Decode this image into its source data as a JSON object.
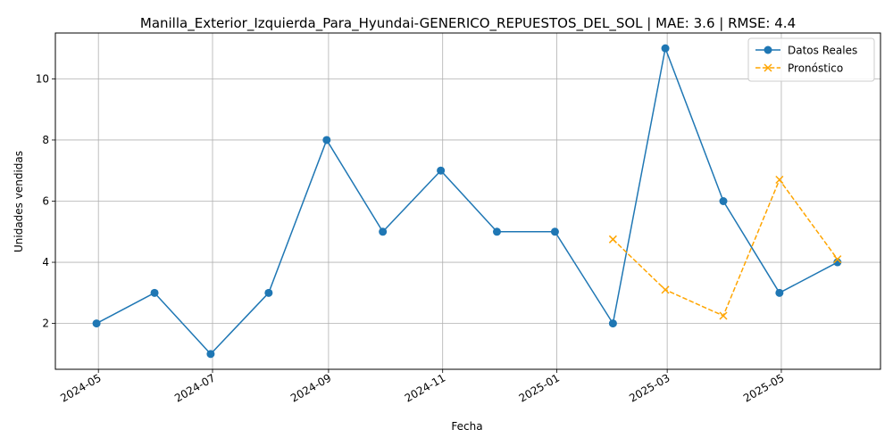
{
  "chart_data": {
    "type": "line",
    "title": "Manilla_Exterior_Izquierda_Para_Hyundai-GENERICO_REPUESTOS_DEL_SOL | MAE: 3.6 | RMSE: 4.4",
    "xlabel": "Fecha",
    "ylabel": "Unidades vendidas",
    "xlim": [
      "2024-04-08",
      "2025-06-23"
    ],
    "ylim": [
      0.5,
      11.5
    ],
    "x_ticks": [
      "2024-05-01",
      "2024-07-01",
      "2024-09-01",
      "2024-11-01",
      "2025-01-01",
      "2025-03-01",
      "2025-05-01"
    ],
    "x_tick_labels": [
      "2024-05",
      "2024-07",
      "2024-09",
      "2024-11",
      "2025-01",
      "2025-03",
      "2025-05"
    ],
    "y_ticks": [
      2,
      4,
      6,
      8,
      10
    ],
    "y_tick_labels": [
      "2",
      "4",
      "6",
      "8",
      "10"
    ],
    "grid": true,
    "legend_position": "top-right",
    "series": [
      {
        "name": "Datos Reales",
        "color": "#1f77b4",
        "style": "solid",
        "marker": "circle",
        "points": [
          {
            "x": "2024-04-30",
            "y": 2
          },
          {
            "x": "2024-05-31",
            "y": 3
          },
          {
            "x": "2024-06-30",
            "y": 1
          },
          {
            "x": "2024-07-31",
            "y": 3
          },
          {
            "x": "2024-08-31",
            "y": 8
          },
          {
            "x": "2024-09-30",
            "y": 5
          },
          {
            "x": "2024-10-31",
            "y": 7
          },
          {
            "x": "2024-11-30",
            "y": 5
          },
          {
            "x": "2024-12-31",
            "y": 5
          },
          {
            "x": "2025-01-31",
            "y": 2
          },
          {
            "x": "2025-02-28",
            "y": 11
          },
          {
            "x": "2025-03-31",
            "y": 6
          },
          {
            "x": "2025-04-30",
            "y": 3
          },
          {
            "x": "2025-05-31",
            "y": 4
          }
        ]
      },
      {
        "name": "Pronóstico",
        "color": "#ffa500",
        "style": "dashed",
        "marker": "x",
        "points": [
          {
            "x": "2025-01-31",
            "y": 4.75
          },
          {
            "x": "2025-02-28",
            "y": 3.1
          },
          {
            "x": "2025-03-31",
            "y": 2.25
          },
          {
            "x": "2025-04-30",
            "y": 6.7
          },
          {
            "x": "2025-05-31",
            "y": 4.1
          }
        ]
      }
    ]
  }
}
